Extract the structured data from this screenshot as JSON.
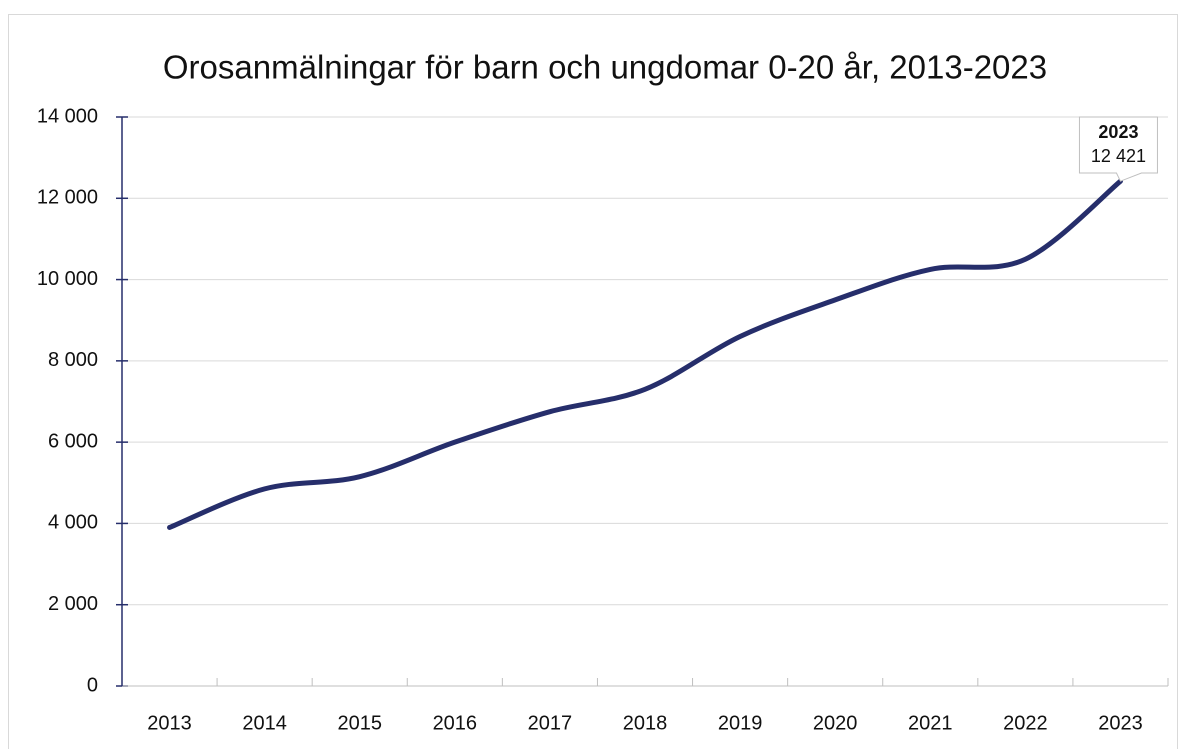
{
  "chart_data": {
    "type": "line",
    "title": "Orosanmälningar för barn och ungdomar 0-20 år, 2013-2023",
    "categories": [
      "2013",
      "2014",
      "2015",
      "2016",
      "2017",
      "2018",
      "2019",
      "2020",
      "2021",
      "2022",
      "2023"
    ],
    "series": [
      {
        "name": "Orosanmälningar",
        "color": "#262e6b",
        "values": [
          3900,
          4850,
          5150,
          6000,
          6750,
          7300,
          8600,
          9500,
          10250,
          10500,
          12421
        ],
        "value_labels": [
          null,
          null,
          null,
          null,
          null,
          null,
          null,
          null,
          null,
          null,
          "12 421"
        ]
      }
    ],
    "ylim": [
      0,
      14000
    ],
    "yticks": [
      0,
      {
        "value": 2000,
        "label": "2 000"
      },
      {
        "value": 4000,
        "label": "4 000"
      },
      {
        "value": 6000,
        "label": "6 000"
      },
      {
        "value": 8000,
        "label": "8 000"
      },
      {
        "value": 10000,
        "label": "10 000"
      },
      {
        "value": 12000,
        "label": "12 000"
      },
      {
        "value": 14000,
        "label": "14 000"
      }
    ],
    "grid": true
  }
}
